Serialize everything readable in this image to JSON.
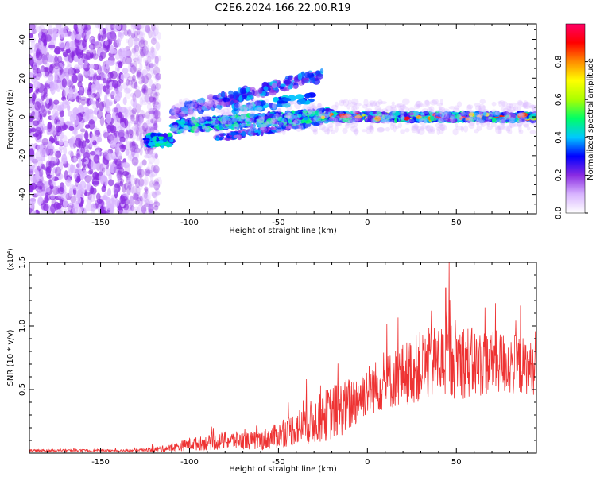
{
  "title": "C2E6.2024.166.22.00.R19",
  "chart_data": [
    {
      "type": "heatmap",
      "xlabel": "Height of straight line (km)",
      "ylabel": "Frequency (Hz)",
      "xlim": [
        -190,
        95
      ],
      "ylim": [
        -50,
        48
      ],
      "x_ticks": [
        -150,
        -100,
        -50,
        0,
        50
      ],
      "x_tick_labels": [
        "-150",
        "-100",
        "-50",
        "0",
        "50"
      ],
      "y_ticks": [
        -40,
        -20,
        0,
        20,
        40
      ],
      "y_tick_labels": [
        "-40",
        "-20",
        "0",
        "20",
        "40"
      ],
      "colorbar": {
        "label": "Normalized spectral amplitude",
        "range": [
          0,
          1
        ],
        "ticks": [
          0.0,
          0.2,
          0.4,
          0.6,
          0.8
        ],
        "tick_labels": [
          "0.0",
          "0.2",
          "0.4",
          "0.6",
          "0.8"
        ],
        "colors": [
          "#ffffff",
          "#d8b4ff",
          "#8a2be2",
          "#0000ff",
          "#00c8ff",
          "#00ff66",
          "#aaff00",
          "#ffff00",
          "#ff8c00",
          "#ff0000",
          "#ff0066"
        ]
      },
      "features": [
        {
          "name": "",
          "x": [
            -190,
            -125
          ],
          "y": [
            -50,
            48
          ],
          "amplitude": 0.2
        },
        {
          "name": "",
          "x": [
            -125,
            95
          ],
          "y_center": 0,
          "amplitude_max": 0.95
        },
        {
          "name": "",
          "x": [
            -110,
            -25
          ],
          "y": [
            0,
            24
          ],
          "amplitude": 0.4
        },
        {
          "name": "",
          "x": [
            -85,
            -25
          ],
          "y": [
            -12,
            -3
          ],
          "amplitude": 0.35
        }
      ]
    },
    {
      "type": "line",
      "xlabel": "Height of straight line (km)",
      "ylabel": "SNR (10 * v/v)",
      "y_multiplier": "(x10⁴)",
      "xlim": [
        -190,
        95
      ],
      "ylim": [
        0,
        1.5
      ],
      "x_ticks": [
        -150,
        -100,
        -50,
        0,
        50
      ],
      "x_tick_labels": [
        "-150",
        "-100",
        "-50",
        "0",
        "50"
      ],
      "y_ticks": [
        0.5,
        1.0,
        1.5
      ],
      "y_tick_labels": [
        "0.5",
        "1.0",
        "1.5"
      ],
      "series": [
        {
          "color": "#ee3333",
          "x": [
            -190,
            -180,
            -170,
            -160,
            -150,
            -140,
            -130,
            -120,
            -110,
            -100,
            -90,
            -80,
            -70,
            -60,
            -50,
            -40,
            -30,
            -20,
            -10,
            0,
            10,
            20,
            30,
            40,
            50,
            60,
            70,
            80,
            90,
            95
          ],
          "y": [
            0.02,
            0.02,
            0.02,
            0.02,
            0.02,
            0.02,
            0.02,
            0.03,
            0.04,
            0.07,
            0.08,
            0.1,
            0.1,
            0.1,
            0.14,
            0.2,
            0.25,
            0.32,
            0.38,
            0.5,
            0.55,
            0.62,
            0.68,
            0.72,
            0.75,
            0.7,
            0.72,
            0.7,
            0.68,
            0.65
          ],
          "spread": [
            0.01,
            0.01,
            0.01,
            0.01,
            0.01,
            0.01,
            0.01,
            0.02,
            0.03,
            0.05,
            0.06,
            0.07,
            0.07,
            0.08,
            0.1,
            0.14,
            0.18,
            0.22,
            0.22,
            0.2,
            0.22,
            0.25,
            0.28,
            0.3,
            0.32,
            0.28,
            0.25,
            0.25,
            0.22,
            0.2
          ],
          "peaks": [
            {
              "x": 46,
              "y": 1.5
            },
            {
              "x": 44,
              "y": 1.3
            },
            {
              "x": 72,
              "y": 1.18
            },
            {
              "x": 86,
              "y": 1.16
            },
            {
              "x": 36,
              "y": 1.12
            }
          ]
        }
      ]
    }
  ]
}
